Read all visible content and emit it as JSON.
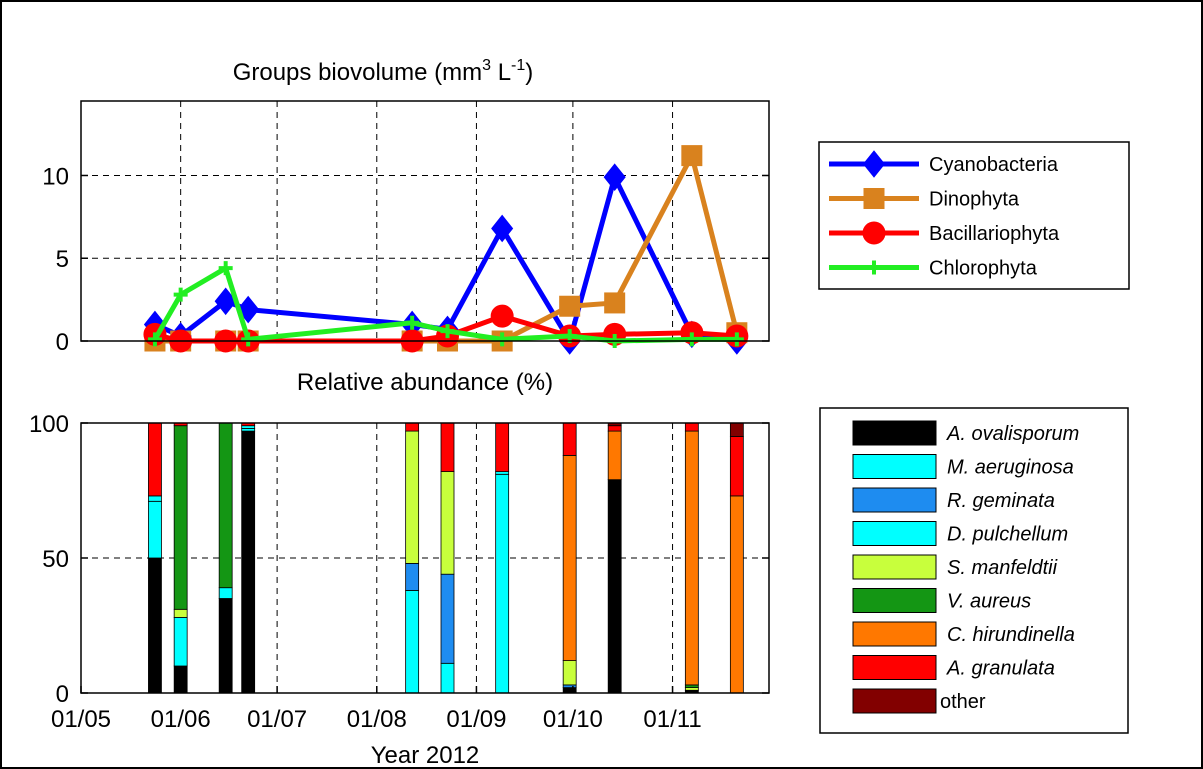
{
  "chart_data": [
    {
      "type": "line",
      "title_main": "Groups biovolume (mm",
      "title_sup1": "3",
      "title_mid": " L",
      "title_sup2": "-1",
      "title_end": ")",
      "xlabel": "",
      "ylabel": "",
      "xlim": [
        "2012-05-01",
        "2012-12-01"
      ],
      "ylim": [
        0,
        14.5
      ],
      "x_ticks": [
        "01/05",
        "01/06",
        "01/07",
        "01/08",
        "01/09",
        "01/10",
        "01/11"
      ],
      "y_ticks": [
        0,
        5,
        10
      ],
      "grid": true,
      "legend_position": "right",
      "series": [
        {
          "name": "Cyanobacteria",
          "color": "#0000ff",
          "marker": "diamond",
          "points": [
            [
              "2012-05-24",
              1.0
            ],
            [
              "2012-06-01",
              0.3
            ],
            [
              "2012-06-15",
              2.4
            ],
            [
              "2012-06-22",
              1.9
            ],
            [
              "2012-08-12",
              1.0
            ],
            [
              "2012-08-23",
              0.7
            ],
            [
              "2012-09-09",
              6.8
            ],
            [
              "2012-09-30",
              0.0
            ],
            [
              "2012-10-14",
              9.9
            ],
            [
              "2012-11-07",
              0.4
            ],
            [
              "2012-11-21",
              0.0
            ]
          ]
        },
        {
          "name": "Dinophyta",
          "color": "#d9821e",
          "marker": "square",
          "points": [
            [
              "2012-05-24",
              0.0
            ],
            [
              "2012-06-01",
              0.0
            ],
            [
              "2012-06-15",
              0.0
            ],
            [
              "2012-06-22",
              0.0
            ],
            [
              "2012-08-12",
              0.0
            ],
            [
              "2012-08-23",
              0.0
            ],
            [
              "2012-09-09",
              0.0
            ],
            [
              "2012-09-30",
              2.1
            ],
            [
              "2012-10-14",
              2.3
            ],
            [
              "2012-11-07",
              11.2
            ],
            [
              "2012-11-21",
              0.5
            ]
          ]
        },
        {
          "name": "Bacillariophyta",
          "color": "#ff0000",
          "marker": "circle",
          "points": [
            [
              "2012-05-24",
              0.4
            ],
            [
              "2012-06-01",
              0.0
            ],
            [
              "2012-06-15",
              0.0
            ],
            [
              "2012-06-22",
              0.0
            ],
            [
              "2012-08-12",
              0.0
            ],
            [
              "2012-08-23",
              0.3
            ],
            [
              "2012-09-09",
              1.5
            ],
            [
              "2012-09-30",
              0.3
            ],
            [
              "2012-10-14",
              0.4
            ],
            [
              "2012-11-07",
              0.5
            ],
            [
              "2012-11-21",
              0.3
            ]
          ]
        },
        {
          "name": "Chlorophyta",
          "color": "#22ee22",
          "marker": "plus",
          "points": [
            [
              "2012-05-24",
              0.1
            ],
            [
              "2012-06-01",
              2.8
            ],
            [
              "2012-06-15",
              4.4
            ],
            [
              "2012-06-22",
              0.1
            ],
            [
              "2012-08-12",
              1.1
            ],
            [
              "2012-08-23",
              0.6
            ],
            [
              "2012-09-09",
              0.1
            ],
            [
              "2012-09-30",
              0.3
            ],
            [
              "2012-10-14",
              0.0
            ],
            [
              "2012-11-07",
              0.1
            ],
            [
              "2012-11-21",
              0.1
            ]
          ]
        }
      ]
    },
    {
      "type": "bar",
      "stacked": true,
      "title": "Relative abundance (%)",
      "xlabel": "Year 2012",
      "ylabel": "",
      "xlim": [
        "2012-05-01",
        "2012-12-01"
      ],
      "ylim": [
        0,
        100
      ],
      "x_ticks": [
        "01/05",
        "01/06",
        "01/07",
        "01/08",
        "01/09",
        "01/10",
        "01/11"
      ],
      "y_ticks": [
        0,
        50,
        100
      ],
      "grid": true,
      "legend_position": "right",
      "series": [
        {
          "name": "A. ovalisporum",
          "italic": true,
          "color": "#000000"
        },
        {
          "name": "M. aeruginosa",
          "italic": true,
          "color": "#00ffff"
        },
        {
          "name": "R. geminata",
          "italic": true,
          "color": "#1e8cf0"
        },
        {
          "name": "D. pulchellum",
          "italic": true,
          "color": "#00ffff"
        },
        {
          "name": "S. manfeldtii",
          "italic": true,
          "color": "#c8ff3c"
        },
        {
          "name": "V. aureus",
          "italic": true,
          "color": "#149614"
        },
        {
          "name": "C. hirundinella",
          "italic": true,
          "color": "#ff7800"
        },
        {
          "name": "A. granulata",
          "italic": true,
          "color": "#ff0000"
        },
        {
          "name": "other",
          "italic": false,
          "color": "#820000"
        }
      ],
      "bars": [
        {
          "date": "2012-05-24",
          "values": [
            50,
            21,
            0,
            2,
            0,
            0,
            0,
            27,
            0
          ]
        },
        {
          "date": "2012-06-01",
          "values": [
            10,
            18,
            0,
            0,
            3,
            68,
            0,
            1,
            0
          ]
        },
        {
          "date": "2012-06-15",
          "values": [
            35,
            4,
            0,
            0,
            0,
            61,
            0,
            0,
            0
          ]
        },
        {
          "date": "2012-06-22",
          "values": [
            97,
            1,
            0,
            1,
            0,
            0,
            0,
            1,
            0
          ]
        },
        {
          "date": "2012-08-12",
          "values": [
            0,
            38,
            10,
            0,
            49,
            0,
            0,
            3,
            0
          ]
        },
        {
          "date": "2012-08-23",
          "values": [
            0,
            11,
            33,
            0,
            38,
            0,
            0,
            18,
            0
          ]
        },
        {
          "date": "2012-09-09",
          "values": [
            0,
            81,
            0,
            1,
            0,
            0,
            0,
            18,
            0
          ]
        },
        {
          "date": "2012-09-30",
          "values": [
            2,
            0,
            1,
            0,
            9,
            0,
            76,
            12,
            0
          ]
        },
        {
          "date": "2012-10-14",
          "values": [
            79,
            0,
            0,
            0,
            0,
            0,
            18,
            2,
            1
          ]
        },
        {
          "date": "2012-11-07",
          "values": [
            1,
            0,
            0,
            0,
            1,
            1,
            94,
            3,
            0
          ]
        },
        {
          "date": "2012-11-21",
          "values": [
            0,
            0,
            0,
            0,
            0,
            0,
            73,
            22,
            5
          ]
        }
      ]
    }
  ]
}
